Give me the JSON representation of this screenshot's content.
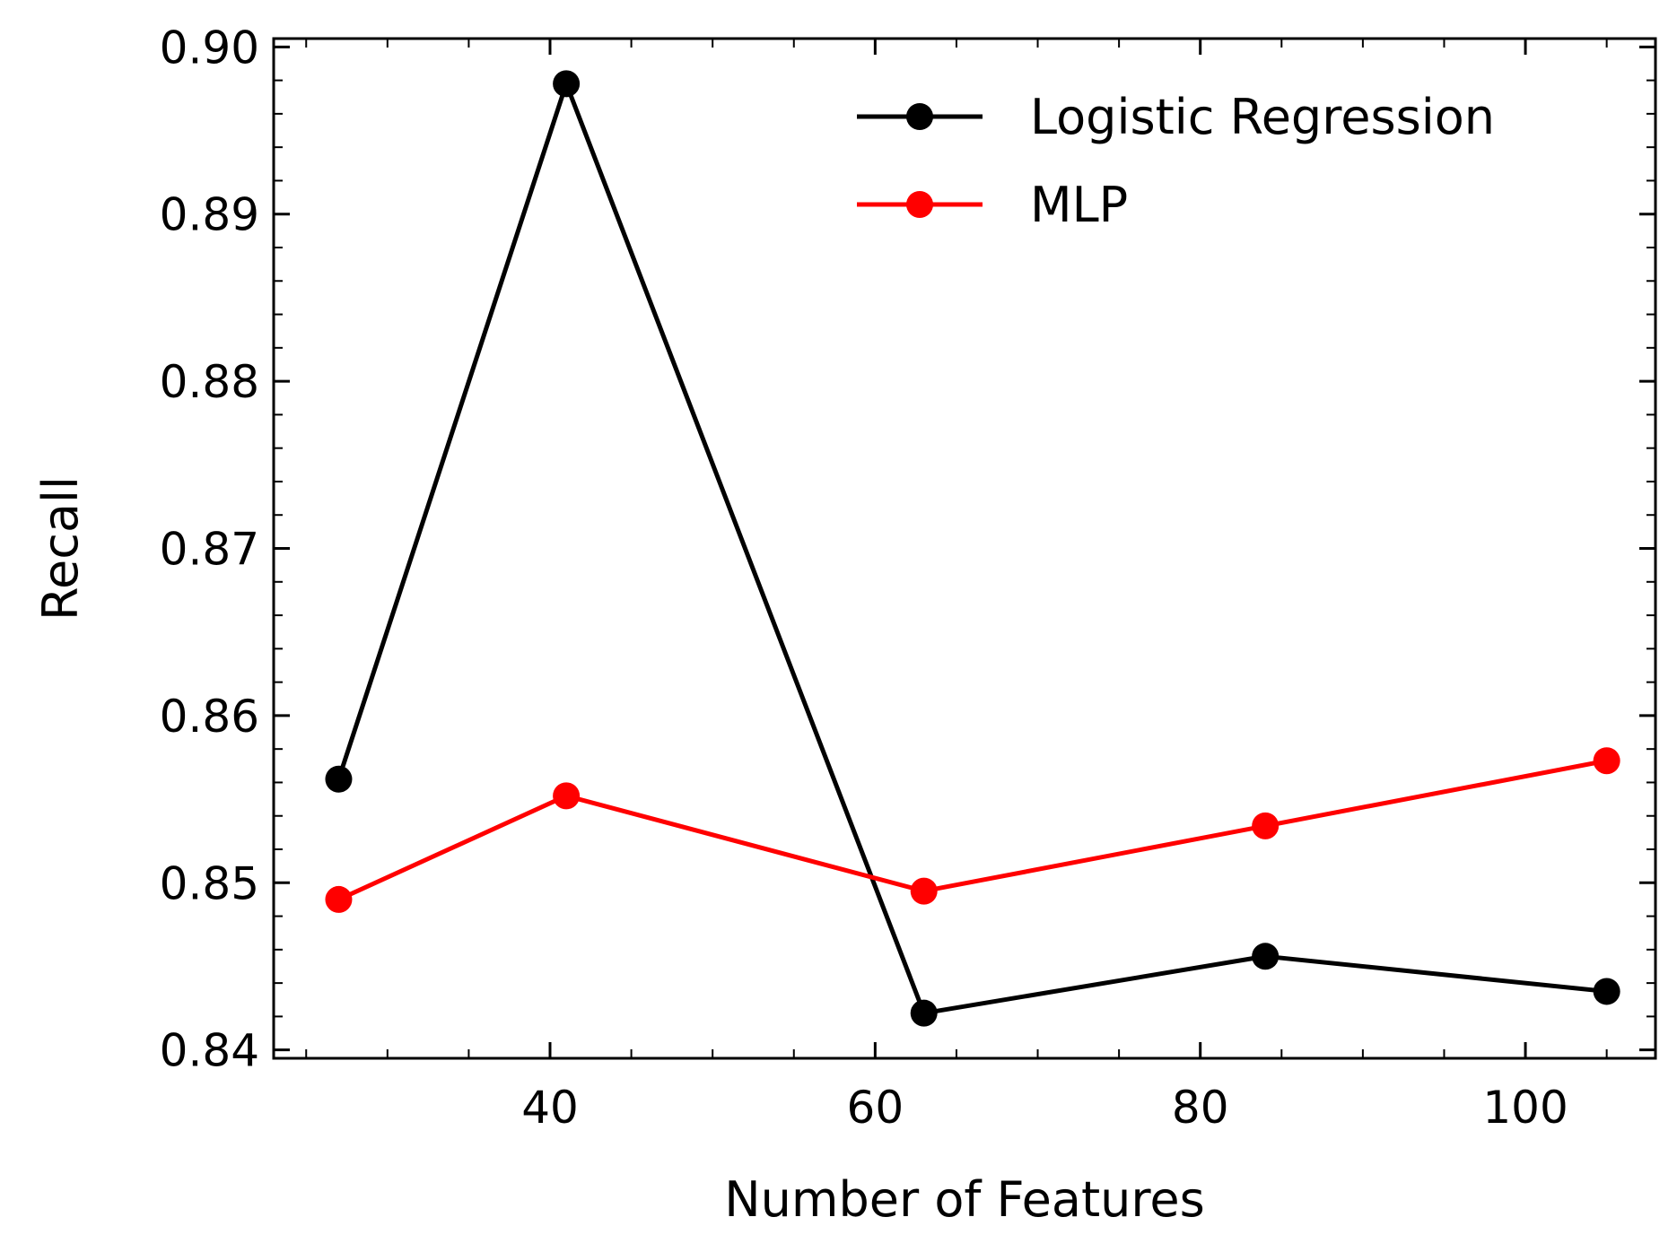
{
  "chart_data": {
    "type": "line",
    "title": "",
    "xlabel": "Number of Features",
    "ylabel": "Recall",
    "xlim": [
      23,
      108
    ],
    "ylim": [
      0.8395,
      0.9005
    ],
    "xticks": [
      40,
      60,
      80,
      100
    ],
    "xtick_labels": [
      "40",
      "60",
      "80",
      "100"
    ],
    "yticks": [
      0.84,
      0.85,
      0.86,
      0.87,
      0.88,
      0.89,
      0.9
    ],
    "ytick_labels": [
      "0.84",
      "0.85",
      "0.86",
      "0.87",
      "0.88",
      "0.89",
      "0.90"
    ],
    "grid": false,
    "legend_position": "top-right",
    "x": [
      27,
      41,
      63,
      84,
      105
    ],
    "series": [
      {
        "name": "Logistic Regression",
        "color": "#000000",
        "marker": "circle",
        "values": [
          0.8562,
          0.8978,
          0.8422,
          0.8456,
          0.8435
        ]
      },
      {
        "name": "MLP",
        "color": "#ff0000",
        "marker": "circle",
        "values": [
          0.849,
          0.8552,
          0.8495,
          0.8534,
          0.8573
        ]
      }
    ]
  }
}
